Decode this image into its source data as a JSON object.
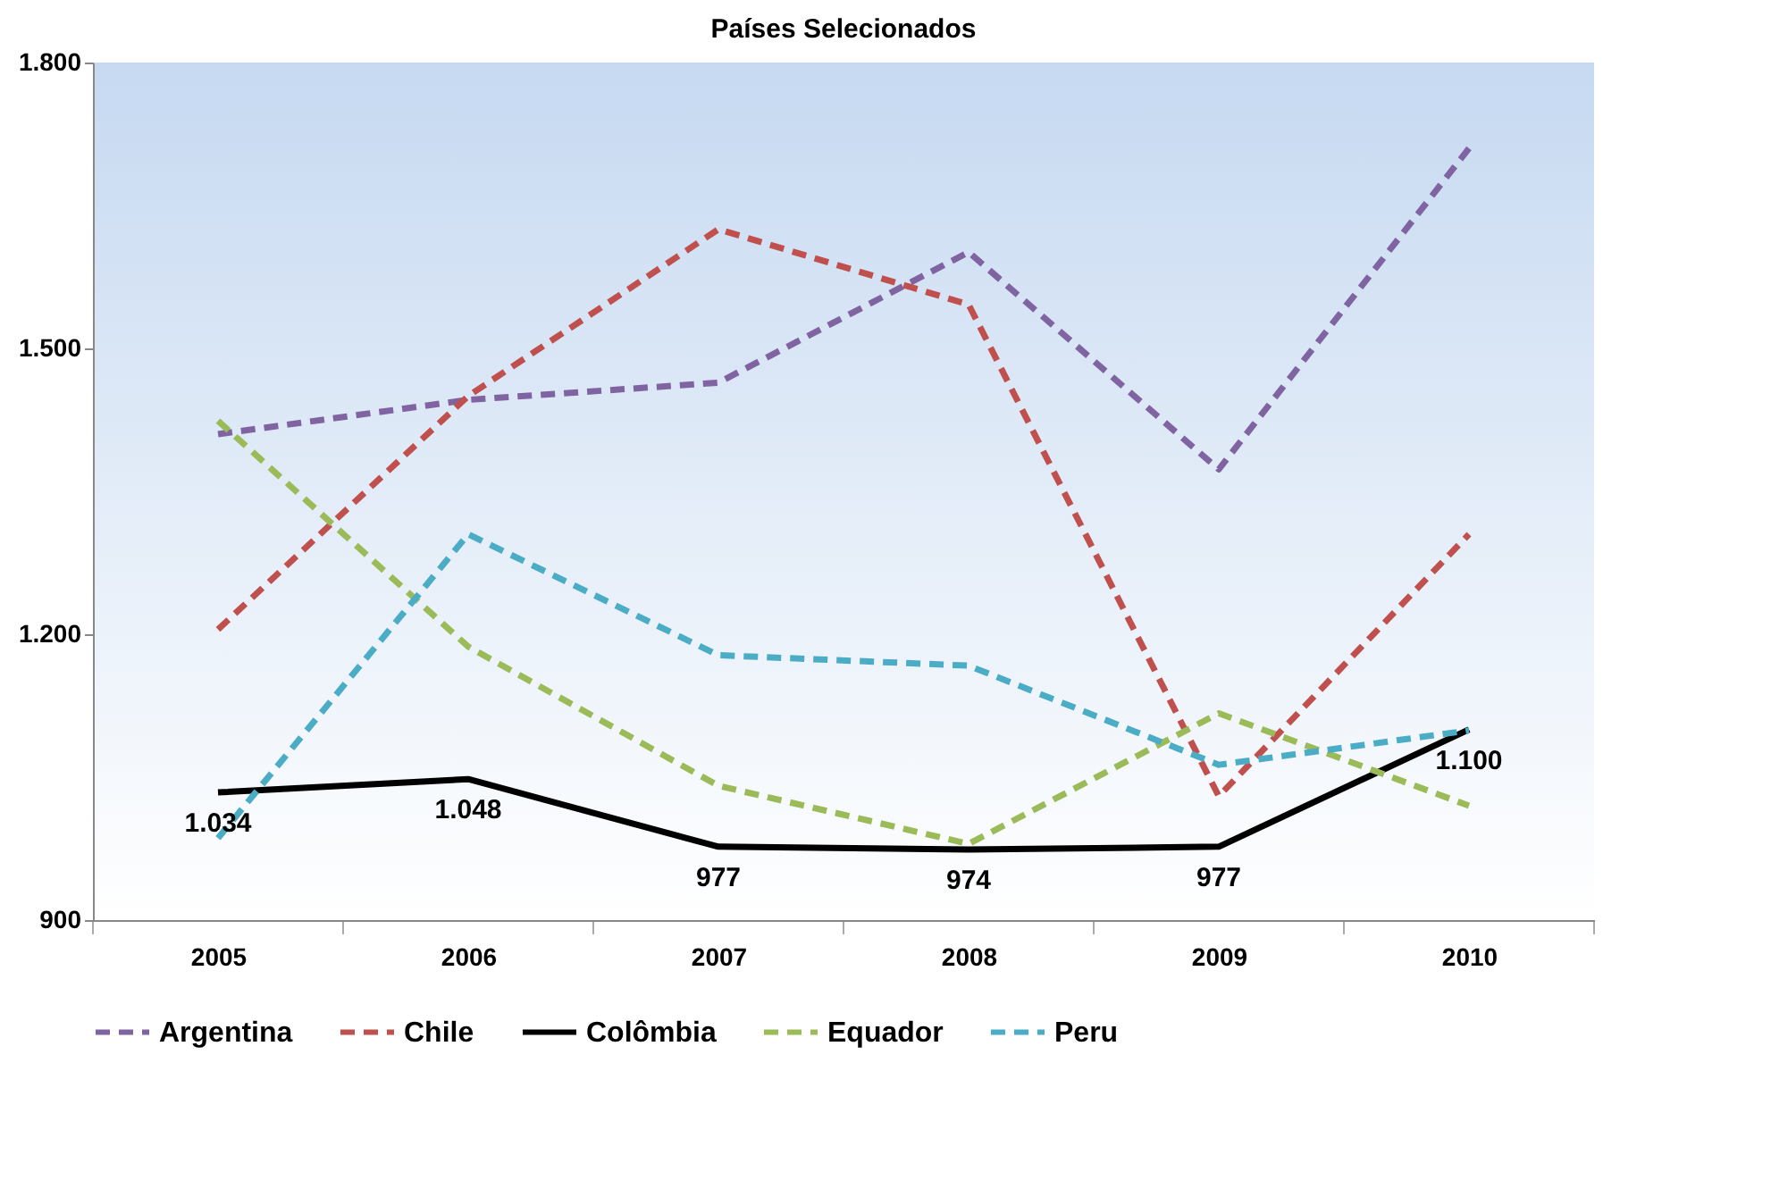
{
  "chart_data": {
    "type": "line",
    "title": "Países Selecionados",
    "categories": [
      "2005",
      "2006",
      "2007",
      "2008",
      "2009",
      "2010"
    ],
    "series": [
      {
        "name": "Argentina",
        "color": "#8064a2",
        "line_style": "dashed",
        "values": [
          1410,
          1446,
          1464,
          1601,
          1373,
          1710
        ]
      },
      {
        "name": "Chile",
        "color": "#c0504d",
        "line_style": "dashed",
        "values": [
          1205,
          1450,
          1625,
          1546,
          1030,
          1305
        ]
      },
      {
        "name": "Colômbia",
        "color": "#000000",
        "line_style": "solid",
        "values": [
          1034,
          1048,
          977,
          974,
          977,
          1100
        ],
        "value_labels": [
          "1.034",
          "1.048",
          "977",
          "974",
          "977",
          "1.100"
        ]
      },
      {
        "name": "Equador",
        "color": "#9bbb59",
        "line_style": "dashed",
        "values": [
          1424,
          1187,
          1041,
          980,
          1117,
          1020
        ]
      },
      {
        "name": "Peru",
        "color": "#4bacc6",
        "line_style": "dashed",
        "values": [
          986,
          1305,
          1178,
          1167,
          1063,
          1099
        ]
      }
    ],
    "ylim": [
      900,
      1800
    ],
    "yticks": [
      {
        "value": 900,
        "label": "900"
      },
      {
        "value": 1200,
        "label": "1.200"
      },
      {
        "value": 1500,
        "label": "1.500"
      },
      {
        "value": 1800,
        "label": "1.800"
      }
    ],
    "grid": false,
    "legend": "bottom",
    "marker": "none"
  }
}
